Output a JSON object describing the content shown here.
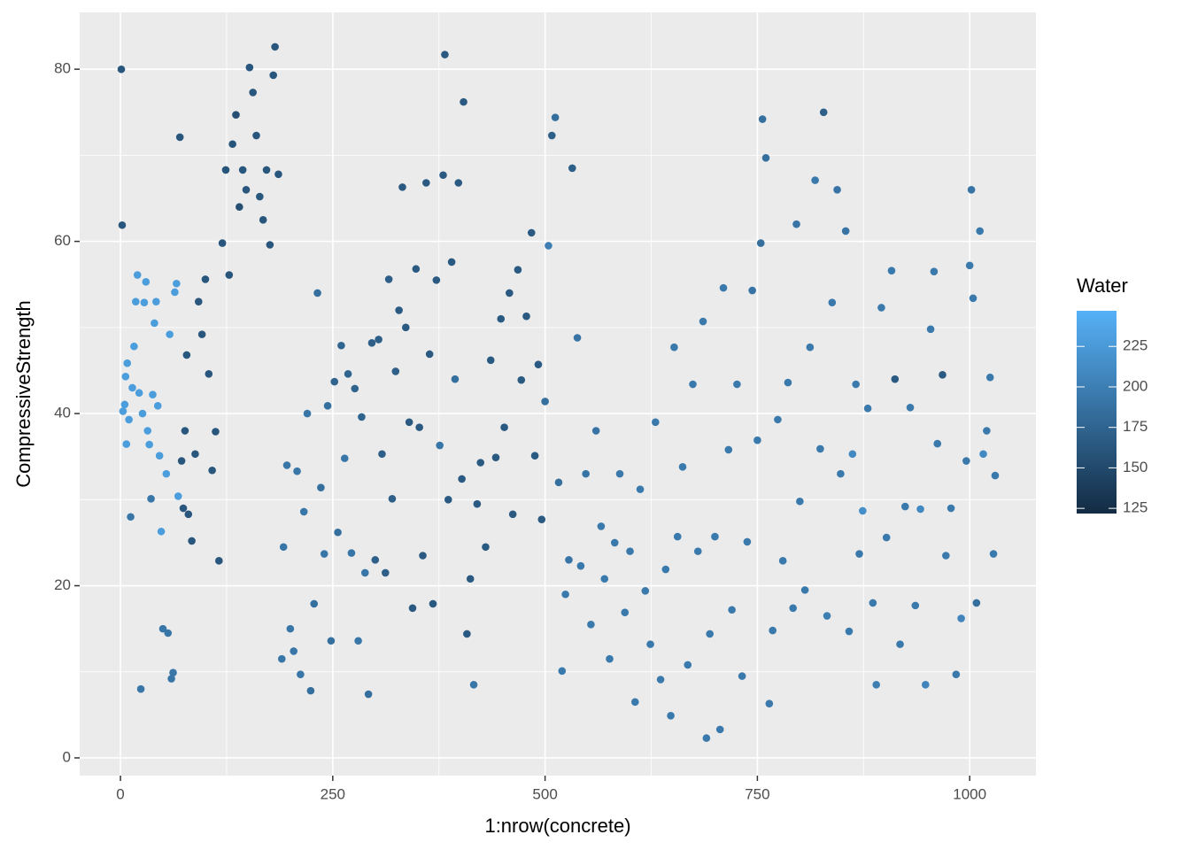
{
  "chart_data": {
    "type": "scatter",
    "x_label": "1:nrow(concrete)",
    "y_label": "CompressiveStrength",
    "xlim": [
      -48,
      1078
    ],
    "ylim": [
      -2.06,
      86.6
    ],
    "xticks": [
      0,
      250,
      500,
      750,
      1000
    ],
    "yticks": [
      0,
      20,
      40,
      60,
      80
    ],
    "grid": true,
    "color_title": "Water",
    "color_lim": [
      121.8,
      247
    ],
    "color_ticks": [
      125,
      150,
      175,
      200,
      225
    ],
    "colormap": [
      "#132B43",
      "#56B1F7"
    ],
    "x": [
      1,
      2,
      3,
      5,
      6,
      7,
      8,
      10,
      12,
      14,
      16,
      18,
      20,
      22,
      24,
      26,
      28,
      30,
      32,
      34,
      36,
      38,
      40,
      42,
      44,
      46,
      48,
      50,
      54,
      56,
      58,
      60,
      62,
      64,
      66,
      68,
      70,
      72,
      74,
      76,
      78,
      80,
      84,
      88,
      92,
      96,
      100,
      104,
      108,
      112,
      116,
      120,
      124,
      128,
      132,
      136,
      140,
      144,
      148,
      152,
      156,
      160,
      164,
      168,
      172,
      176,
      180,
      182,
      186,
      190,
      192,
      196,
      200,
      204,
      208,
      212,
      216,
      220,
      224,
      228,
      232,
      236,
      240,
      244,
      248,
      252,
      256,
      260,
      264,
      268,
      272,
      276,
      280,
      284,
      288,
      292,
      296,
      300,
      304,
      308,
      312,
      316,
      320,
      324,
      328,
      332,
      336,
      340,
      344,
      348,
      352,
      356,
      360,
      364,
      368,
      372,
      376,
      380,
      382,
      386,
      390,
      394,
      398,
      402,
      404,
      408,
      412,
      416,
      420,
      424,
      430,
      436,
      442,
      448,
      452,
      458,
      462,
      468,
      472,
      478,
      484,
      488,
      492,
      496,
      500,
      504,
      508,
      512,
      516,
      520,
      524,
      528,
      532,
      538,
      542,
      548,
      554,
      560,
      566,
      570,
      576,
      582,
      588,
      594,
      600,
      606,
      612,
      618,
      624,
      630,
      636,
      642,
      648,
      652,
      656,
      662,
      668,
      674,
      680,
      686,
      690,
      694,
      700,
      706,
      710,
      716,
      720,
      726,
      732,
      738,
      744,
      750,
      754,
      756,
      760,
      764,
      768,
      774,
      780,
      786,
      792,
      796,
      800,
      806,
      812,
      818,
      824,
      828,
      832,
      838,
      844,
      848,
      854,
      858,
      862,
      866,
      870,
      874,
      880,
      886,
      890,
      896,
      902,
      908,
      912,
      918,
      924,
      930,
      936,
      942,
      948,
      954,
      958,
      962,
      968,
      972,
      978,
      984,
      990,
      996,
      1000,
      1002,
      1004,
      1008,
      1012,
      1016,
      1020,
      1024,
      1028,
      1030
    ],
    "values": [
      79.99,
      61.89,
      40.27,
      41.05,
      44.3,
      36.45,
      45.85,
      39.29,
      28.0,
      43.0,
      47.8,
      53.0,
      56.1,
      42.4,
      8.0,
      40.0,
      52.9,
      55.3,
      38.0,
      36.4,
      30.1,
      42.2,
      50.5,
      53.0,
      40.9,
      35.1,
      26.3,
      15.0,
      33.0,
      14.5,
      49.2,
      9.2,
      9.9,
      54.1,
      55.1,
      30.4,
      72.1,
      34.5,
      29.0,
      38.0,
      46.8,
      28.3,
      25.2,
      35.3,
      53.0,
      49.2,
      55.6,
      44.6,
      33.4,
      37.9,
      22.9,
      59.8,
      68.3,
      56.1,
      71.3,
      74.7,
      64.0,
      68.3,
      66.0,
      80.2,
      77.3,
      72.3,
      65.2,
      62.5,
      68.3,
      59.6,
      79.3,
      82.6,
      67.8,
      11.5,
      24.5,
      34.0,
      15.0,
      12.4,
      33.3,
      9.7,
      28.6,
      40.0,
      7.8,
      17.9,
      54.0,
      31.4,
      23.7,
      40.9,
      13.6,
      43.7,
      26.2,
      47.9,
      34.8,
      44.6,
      23.8,
      42.9,
      13.6,
      39.6,
      21.5,
      7.4,
      48.2,
      23.0,
      48.6,
      35.3,
      21.5,
      55.6,
      30.1,
      44.9,
      52.0,
      66.3,
      50.0,
      39.0,
      17.4,
      56.8,
      38.4,
      23.5,
      66.8,
      46.9,
      17.9,
      55.5,
      36.3,
      67.7,
      81.7,
      30.0,
      57.6,
      44.0,
      66.8,
      32.4,
      76.2,
      14.4,
      20.8,
      8.5,
      29.5,
      34.3,
      24.5,
      46.2,
      34.9,
      51.0,
      38.4,
      54.0,
      28.3,
      56.7,
      43.9,
      51.3,
      61.0,
      35.1,
      45.7,
      27.7,
      41.4,
      59.5,
      72.3,
      74.4,
      32.0,
      10.1,
      19.0,
      23.0,
      68.5,
      48.8,
      22.3,
      33.0,
      15.5,
      38.0,
      26.9,
      20.8,
      11.5,
      25.0,
      33.0,
      16.9,
      24.0,
      6.5,
      31.2,
      19.4,
      13.2,
      39.0,
      9.1,
      21.9,
      4.9,
      47.7,
      25.7,
      33.8,
      10.8,
      43.4,
      24.0,
      50.7,
      2.3,
      14.4,
      25.7,
      3.3,
      54.6,
      35.8,
      17.2,
      43.4,
      9.5,
      25.1,
      54.3,
      36.9,
      59.8,
      74.2,
      69.7,
      6.3,
      14.8,
      39.3,
      22.9,
      43.6,
      17.4,
      62.0,
      29.8,
      19.5,
      47.7,
      67.1,
      35.9,
      75.0,
      16.5,
      52.9,
      66.0,
      33.0,
      61.2,
      14.7,
      35.3,
      43.4,
      23.7,
      28.7,
      40.6,
      18.0,
      8.5,
      52.3,
      25.6,
      56.6,
      44.0,
      13.2,
      29.2,
      40.7,
      17.7,
      28.9,
      8.5,
      49.8,
      56.5,
      36.5,
      44.5,
      23.5,
      29.0,
      9.7,
      16.2,
      34.5,
      57.2,
      66.0,
      53.4,
      18.0,
      61.2,
      35.3,
      38.0,
      44.2,
      23.7,
      32.8
    ],
    "color_values": [
      162,
      162,
      228,
      228,
      228,
      228,
      228,
      228,
      192,
      228,
      228,
      228,
      228,
      228,
      192,
      228,
      228,
      228,
      228,
      228,
      192,
      228,
      228,
      228,
      228,
      228,
      228,
      192,
      228,
      192,
      228,
      192,
      192,
      228,
      228,
      228,
      162,
      162,
      162,
      162,
      162,
      162,
      162,
      162,
      162,
      162,
      162,
      162,
      162,
      162,
      162,
      162,
      160,
      160,
      160,
      155,
      155,
      162,
      162,
      162,
      162,
      162,
      162,
      162,
      162,
      162,
      162,
      162,
      162,
      192,
      192,
      192,
      192,
      192,
      192,
      192,
      192,
      192,
      185,
      185,
      185,
      185,
      192,
      185,
      185,
      175,
      185,
      175,
      192,
      175,
      192,
      175,
      192,
      175,
      192,
      185,
      170,
      170,
      170,
      170,
      170,
      170,
      170,
      170,
      165,
      165,
      165,
      165,
      165,
      165,
      165,
      165,
      165,
      165,
      165,
      165,
      192,
      165,
      165,
      165,
      165,
      185,
      165,
      165,
      165,
      165,
      165,
      192,
      165,
      165,
      165,
      165,
      165,
      165,
      165,
      165,
      165,
      165,
      165,
      165,
      165,
      165,
      165,
      165,
      185,
      200,
      170,
      185,
      185,
      195,
      195,
      190,
      170,
      190,
      195,
      190,
      195,
      190,
      195,
      195,
      195,
      195,
      195,
      195,
      195,
      195,
      195,
      195,
      195,
      195,
      195,
      195,
      195,
      195,
      195,
      195,
      195,
      195,
      195,
      195,
      195,
      195,
      195,
      195,
      195,
      195,
      195,
      195,
      195,
      195,
      190,
      195,
      185,
      185,
      185,
      195,
      195,
      195,
      195,
      195,
      195,
      190,
      195,
      195,
      195,
      195,
      195,
      170,
      200,
      195,
      190,
      195,
      190,
      195,
      210,
      195,
      195,
      215,
      195,
      195,
      200,
      195,
      195,
      195,
      165,
      195,
      195,
      195,
      195,
      210,
      205,
      195,
      195,
      195,
      165,
      195,
      195,
      195,
      205,
      195,
      195,
      190,
      195,
      185,
      195,
      210,
      195,
      195,
      195,
      195
    ]
  }
}
